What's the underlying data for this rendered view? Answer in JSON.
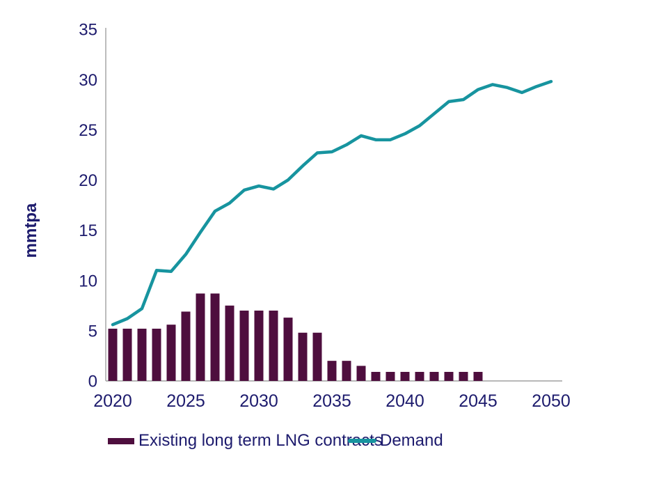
{
  "chart_data": {
    "type": "combo-bar-line",
    "title": "",
    "xlabel": "",
    "ylabel": "mmtpa",
    "ylim": [
      0,
      35
    ],
    "y_ticks": [
      0,
      5,
      10,
      15,
      20,
      25,
      30,
      35
    ],
    "x_ticks": [
      2020,
      2025,
      2030,
      2035,
      2040,
      2045,
      2050
    ],
    "x_range": [
      2020,
      2050
    ],
    "grid": false,
    "legend_position": "bottom",
    "series": [
      {
        "name": "Existing long term LNG contracts",
        "type": "bar",
        "color": "#4e0e3e",
        "x": [
          2020,
          2021,
          2022,
          2023,
          2024,
          2025,
          2026,
          2027,
          2028,
          2029,
          2030,
          2031,
          2032,
          2033,
          2034,
          2035,
          2036,
          2037,
          2038,
          2039,
          2040,
          2041,
          2042,
          2043,
          2044,
          2045
        ],
        "values": [
          5.2,
          5.2,
          5.2,
          5.2,
          5.6,
          6.9,
          8.7,
          8.7,
          7.5,
          7.0,
          7.0,
          7.0,
          6.3,
          4.8,
          4.8,
          2.0,
          2.0,
          1.5,
          0.9,
          0.9,
          0.9,
          0.9,
          0.9,
          0.9,
          0.9,
          0.9
        ]
      },
      {
        "name": "Demand",
        "type": "line",
        "color": "#17949f",
        "x": [
          2020,
          2021,
          2022,
          2023,
          2024,
          2025,
          2026,
          2027,
          2028,
          2029,
          2030,
          2031,
          2032,
          2033,
          2034,
          2035,
          2036,
          2037,
          2038,
          2039,
          2040,
          2041,
          2042,
          2043,
          2044,
          2045,
          2046,
          2047,
          2048,
          2049,
          2050
        ],
        "values": [
          5.6,
          6.2,
          7.2,
          11.0,
          10.9,
          12.6,
          14.8,
          16.9,
          17.7,
          19.0,
          19.4,
          19.1,
          20.0,
          21.4,
          22.7,
          22.8,
          23.5,
          24.4,
          24.0,
          24.0,
          24.6,
          25.4,
          26.6,
          27.8,
          28.0,
          29.0,
          29.5,
          29.2,
          28.7,
          29.3,
          29.8
        ]
      }
    ]
  },
  "colors": {
    "bar": "#4e0e3e",
    "line": "#17949f",
    "text": "#1d1b6d",
    "axis": "#a0a0a0",
    "background": "#ffffff"
  },
  "legend": {
    "items": [
      {
        "label": "Existing long term LNG contracts",
        "shape": "bar",
        "color": "#4e0e3e"
      },
      {
        "label": "Demand",
        "shape": "line",
        "color": "#17949f"
      }
    ]
  }
}
